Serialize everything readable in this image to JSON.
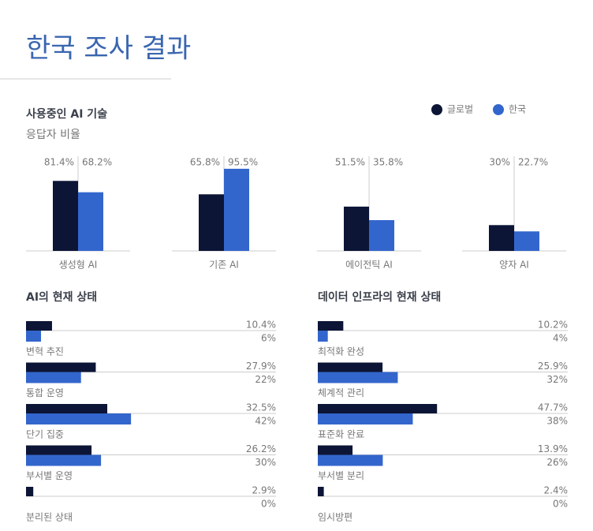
{
  "title": "한국 조사 결과",
  "chart_data": [
    {
      "type": "bar",
      "title": "사용중인 AI 기술",
      "subtitle": "응답자 비율",
      "categories": [
        "생성형 AI",
        "기존 AI",
        "에이전틱 AI",
        "양자 AI"
      ],
      "series": [
        {
          "name": "글로벌",
          "color": "#0c1535",
          "values": [
            81.4,
            65.8,
            51.5,
            30
          ],
          "value_labels": [
            "81.4%",
            "65.8%",
            "51.5%",
            "30%"
          ]
        },
        {
          "name": "한국",
          "color": "#3366cc",
          "values": [
            68.2,
            95.5,
            35.8,
            22.7
          ],
          "value_labels": [
            "68.2%",
            "95.5%",
            "35.8%",
            "22.7%"
          ]
        }
      ],
      "ylim": [
        0,
        100
      ]
    },
    {
      "type": "hbar",
      "title": "AI의 현재 상태",
      "categories": [
        "변혁 추진",
        "통합 운영",
        "단기 집중",
        "부서별 운영",
        "분리된 상태"
      ],
      "series": [
        {
          "color": "#0c1535",
          "values": [
            10.4,
            27.9,
            32.5,
            26.2,
            2.9
          ],
          "value_labels": [
            "10.4%",
            "27.9%",
            "32.5%",
            "26.2%",
            "2.9%"
          ]
        },
        {
          "color": "#3366cc",
          "values": [
            6,
            22,
            42,
            30,
            0
          ],
          "value_labels": [
            "6%",
            "22%",
            "42%",
            "30%",
            "0%"
          ]
        }
      ],
      "xlim": [
        0,
        100
      ]
    },
    {
      "type": "hbar",
      "title": "데이터 인프라의 현재 상태",
      "categories": [
        "최적화 완성",
        "체계적 관리",
        "표준화 완료",
        "부서별 분리",
        "임시방편"
      ],
      "series": [
        {
          "color": "#0c1535",
          "values": [
            10.2,
            25.9,
            47.7,
            13.9,
            2.4
          ],
          "value_labels": [
            "10.2%",
            "25.9%",
            "47.7%",
            "13.9%",
            "2.4%"
          ]
        },
        {
          "color": "#3366cc",
          "values": [
            4,
            32,
            38,
            26,
            0
          ],
          "value_labels": [
            "4%",
            "32%",
            "38%",
            "26%",
            "0%"
          ]
        }
      ],
      "xlim": [
        0,
        100
      ]
    }
  ]
}
